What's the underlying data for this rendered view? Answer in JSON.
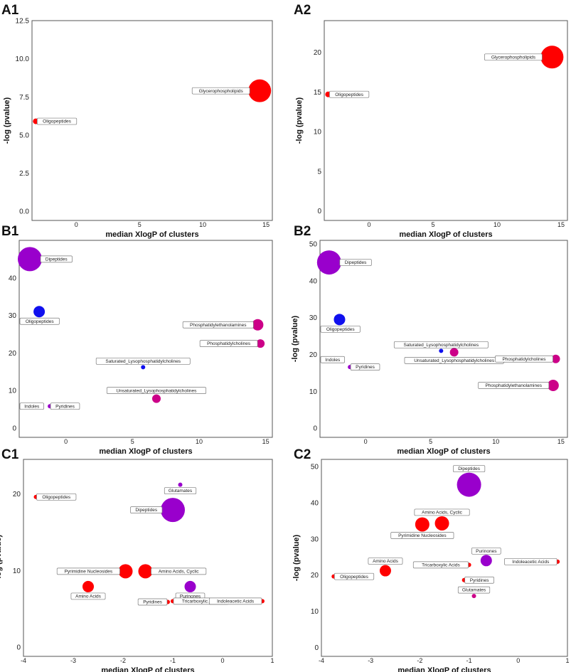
{
  "colors": {
    "red": "#ff0000",
    "purple": "#9900cc",
    "magenta": "#cc0088",
    "blue": "#1010ee"
  },
  "chart_data": [
    {
      "panel": "A1",
      "type": "scatter",
      "xlabel": "median XlogP of clusters",
      "ylabel": "-log (pvalue)",
      "xlim": [
        -3.5,
        15.5
      ],
      "ylim": [
        -0.6,
        12.5
      ],
      "xticks": [
        "0",
        "5",
        "10",
        "15"
      ],
      "xtick_values": [
        0,
        5,
        10,
        15
      ],
      "yticks": [
        "0.0",
        "2.5",
        "5.0",
        "7.5",
        "10.0",
        "12.5"
      ],
      "ytick_values": [
        0,
        2.5,
        5.0,
        7.5,
        10.0,
        12.5
      ],
      "points": [
        {
          "name": "Oligopeptides",
          "x": -3.2,
          "y": 5.9,
          "size": 4,
          "color": "red",
          "label_side": "right"
        },
        {
          "name": "Glycerophospholipids",
          "x": 14.5,
          "y": 7.9,
          "size": 16,
          "color": "red",
          "label_side": "left"
        }
      ]
    },
    {
      "panel": "A2",
      "type": "scatter",
      "xlabel": "median XlogP of clusters",
      "ylabel": "-log (pvalue)",
      "xlim": [
        -3.5,
        15.5
      ],
      "ylim": [
        -1.2,
        24
      ],
      "xticks": [
        "0",
        "5",
        "10",
        "15"
      ],
      "xtick_values": [
        0,
        5,
        10,
        15
      ],
      "yticks": [
        "0",
        "5",
        "10",
        "15",
        "20"
      ],
      "ytick_values": [
        0,
        5,
        10,
        15,
        20
      ],
      "points": [
        {
          "name": "Oligopeptides",
          "x": -3.2,
          "y": 14.7,
          "size": 4,
          "color": "red",
          "label_side": "right"
        },
        {
          "name": "Glycerophospholipids",
          "x": 14.3,
          "y": 19.4,
          "size": 16,
          "color": "red",
          "label_side": "left"
        }
      ]
    },
    {
      "panel": "B1",
      "type": "scatter",
      "xlabel": "median XlogP of clusters",
      "ylabel": "-log (pvalue)",
      "xlim": [
        -3.5,
        15.5
      ],
      "ylim": [
        -2.5,
        50
      ],
      "xticks": [
        "0",
        "5",
        "10",
        "15"
      ],
      "xtick_values": [
        0,
        5,
        10,
        15
      ],
      "yticks": [
        "0",
        "10",
        "20",
        "30",
        "40"
      ],
      "ytick_values": [
        0,
        10,
        20,
        30,
        40
      ],
      "points": [
        {
          "name": "Dipeptides",
          "x": -2.7,
          "y": 45,
          "size": 17,
          "color": "purple",
          "label_side": "right"
        },
        {
          "name": "Oligopeptides",
          "x": -2.0,
          "y": 31,
          "size": 8,
          "color": "blue",
          "label_side": "below"
        },
        {
          "name": "Phosphatidylethanolamines",
          "x": 14.4,
          "y": 27.5,
          "size": 8,
          "color": "magenta",
          "label_side": "left"
        },
        {
          "name": "Phosphatidylcholines",
          "x": 14.6,
          "y": 22.5,
          "size": 6,
          "color": "magenta",
          "label_side": "left"
        },
        {
          "name": "Saturated_Lysophosphatidylcholines",
          "x": 5.8,
          "y": 16.2,
          "size": 3,
          "color": "blue",
          "label_side": "above"
        },
        {
          "name": "Unsaturated_Lysophosphatidylcholines",
          "x": 6.8,
          "y": 7.8,
          "size": 6,
          "color": "magenta",
          "label_side": "above"
        },
        {
          "name": "Indoles",
          "x": -2.0,
          "y": 5.8,
          "size": 3,
          "color": "magenta",
          "label_side": "left"
        },
        {
          "name": "Pyridines",
          "x": -1.2,
          "y": 5.8,
          "size": 3,
          "color": "purple",
          "label_side": "right"
        }
      ]
    },
    {
      "panel": "B2",
      "type": "scatter",
      "xlabel": "median XlogP of clusters",
      "ylabel": "-log (pvalue)",
      "xlim": [
        -3.5,
        15.5
      ],
      "ylim": [
        -2.5,
        51
      ],
      "xticks": [
        "0",
        "5",
        "10",
        "15"
      ],
      "xtick_values": [
        0,
        5,
        10,
        15
      ],
      "yticks": [
        "0",
        "10",
        "20",
        "30",
        "40",
        "50"
      ],
      "ytick_values": [
        0,
        10,
        20,
        30,
        40,
        50
      ],
      "points": [
        {
          "name": "Dipeptides",
          "x": -2.8,
          "y": 45,
          "size": 17,
          "color": "purple",
          "label_side": "right"
        },
        {
          "name": "Oligopeptides",
          "x": -2.0,
          "y": 29.5,
          "size": 8,
          "color": "blue",
          "label_side": "below"
        },
        {
          "name": "Saturated_Lysophosphatidylcholines",
          "x": 5.8,
          "y": 21,
          "size": 3,
          "color": "blue",
          "label_side": "above"
        },
        {
          "name": "Unsaturated_Lysophosphatidylcholines",
          "x": 6.8,
          "y": 20.6,
          "size": 6,
          "color": "magenta",
          "label_side": "below"
        },
        {
          "name": "Indoles",
          "x": -2.0,
          "y": 18.6,
          "size": 3,
          "color": "magenta",
          "label_side": "left"
        },
        {
          "name": "Pyridines",
          "x": -1.2,
          "y": 16.6,
          "size": 3,
          "color": "purple",
          "label_side": "right"
        },
        {
          "name": "Phosphatidylcholines",
          "x": 14.6,
          "y": 18.8,
          "size": 6,
          "color": "magenta",
          "label_side": "left"
        },
        {
          "name": "Phosphatidylethanolamines",
          "x": 14.4,
          "y": 11.6,
          "size": 8,
          "color": "magenta",
          "label_side": "left"
        }
      ]
    },
    {
      "panel": "C1",
      "type": "scatter",
      "xlabel": "median XlogP of clusters",
      "ylabel": "-log (pvalue)",
      "xlim": [
        -4.0,
        1.0
      ],
      "ylim": [
        -1.2,
        24.5
      ],
      "xticks": [
        "-4",
        "-3",
        "-2",
        "-1",
        "0",
        "1"
      ],
      "xtick_values": [
        -4,
        -3,
        -2,
        -1,
        0,
        1
      ],
      "yticks": [
        "0",
        "10",
        "20"
      ],
      "ytick_values": [
        0,
        10,
        20
      ],
      "points": [
        {
          "name": "Oligopeptides",
          "x": -3.75,
          "y": 19.6,
          "size": 3,
          "color": "red",
          "label_side": "right"
        },
        {
          "name": "Glutamates",
          "x": -0.85,
          "y": 21.2,
          "size": 3,
          "color": "purple",
          "label_side": "below"
        },
        {
          "name": "Dipeptides",
          "x": -1.0,
          "y": 17.9,
          "size": 17,
          "color": "purple",
          "label_side": "left"
        },
        {
          "name": "Pyrimidine Nucleosides",
          "x": -1.95,
          "y": 9.9,
          "size": 10,
          "color": "red",
          "label_side": "left"
        },
        {
          "name": "Amino Acids, Cyclic",
          "x": -1.55,
          "y": 9.9,
          "size": 10,
          "color": "red",
          "label_side": "right"
        },
        {
          "name": "Amino Acids",
          "x": -2.7,
          "y": 7.9,
          "size": 8,
          "color": "red",
          "label_side": "below"
        },
        {
          "name": "Purinones",
          "x": -0.65,
          "y": 7.9,
          "size": 8,
          "color": "purple",
          "label_side": "below"
        },
        {
          "name": "Tricarboxylic Acids",
          "x": -1.0,
          "y": 6.0,
          "size": 3,
          "color": "red",
          "label_side": "right"
        },
        {
          "name": "Pyridines",
          "x": -1.1,
          "y": 5.9,
          "size": 3,
          "color": "red",
          "label_side": "left"
        },
        {
          "name": "Indoleacetic Acids",
          "x": 0.8,
          "y": 6.0,
          "size": 3,
          "color": "red",
          "label_side": "left"
        }
      ]
    },
    {
      "panel": "C2",
      "type": "scatter",
      "xlabel": "median XlogP of clusters",
      "ylabel": "-log (pvalue)",
      "xlim": [
        -4.0,
        1.0
      ],
      "ylim": [
        -2.5,
        52
      ],
      "xticks": [
        "-4",
        "-3",
        "-2",
        "-1",
        "0",
        "1"
      ],
      "xtick_values": [
        -4,
        -3,
        -2,
        -1,
        0,
        1
      ],
      "yticks": [
        "0",
        "10",
        "20",
        "30",
        "40",
        "50"
      ],
      "ytick_values": [
        0,
        10,
        20,
        30,
        40,
        50
      ],
      "points": [
        {
          "name": "Dipeptides",
          "x": -1.0,
          "y": 45,
          "size": 17,
          "color": "purple",
          "label_side": "above"
        },
        {
          "name": "Amino Acids, Cyclic",
          "x": -1.55,
          "y": 34.3,
          "size": 10,
          "color": "red",
          "label_side": "above"
        },
        {
          "name": "Pyrimidine Nucleosides",
          "x": -1.95,
          "y": 34,
          "size": 10,
          "color": "red",
          "label_side": "below"
        },
        {
          "name": "Purinones",
          "x": -0.65,
          "y": 24,
          "size": 8,
          "color": "purple",
          "label_side": "above"
        },
        {
          "name": "Indoleacetic Acids",
          "x": 0.8,
          "y": 23.7,
          "size": 3,
          "color": "red",
          "label_side": "left"
        },
        {
          "name": "Tricarboxylic Acids",
          "x": -1.0,
          "y": 22.8,
          "size": 3,
          "color": "red",
          "label_side": "left"
        },
        {
          "name": "Amino Acids",
          "x": -2.7,
          "y": 21.2,
          "size": 8,
          "color": "red",
          "label_side": "above"
        },
        {
          "name": "Oligopeptides",
          "x": -3.75,
          "y": 19.6,
          "size": 3,
          "color": "red",
          "label_side": "right"
        },
        {
          "name": "Pyridines",
          "x": -1.1,
          "y": 18.6,
          "size": 3,
          "color": "red",
          "label_side": "right"
        },
        {
          "name": "Glutamates",
          "x": -0.9,
          "y": 14.2,
          "size": 3,
          "color": "magenta",
          "label_side": "above"
        }
      ]
    }
  ]
}
